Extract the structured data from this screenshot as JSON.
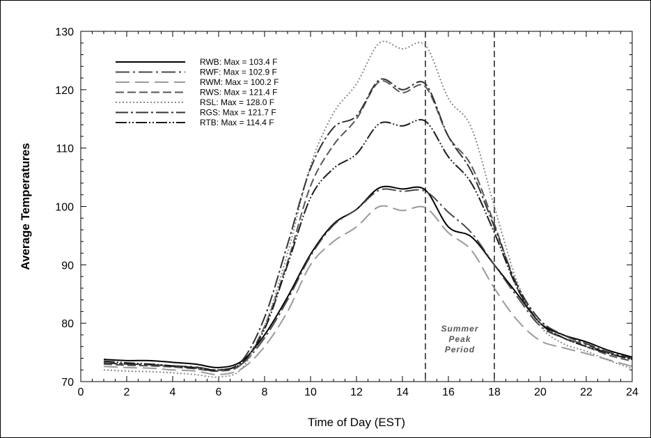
{
  "chart_data": {
    "type": "line",
    "title": "",
    "xlabel": "Time of Day (EST)",
    "ylabel": "Average Temperatures",
    "xlim": [
      0,
      24
    ],
    "ylim": [
      70,
      130
    ],
    "xticks": [
      0,
      2,
      4,
      6,
      8,
      10,
      12,
      14,
      16,
      18,
      20,
      22,
      24
    ],
    "yticks": [
      70,
      80,
      90,
      100,
      110,
      120,
      130
    ],
    "grid": false,
    "legend_position": "top-left",
    "annotation": {
      "lines": [
        "Summer",
        "Peak",
        "Period"
      ],
      "x_start": 15,
      "x_end": 18
    },
    "series": [
      {
        "name": "RWB: Max = 103.4 F",
        "color": "#000000",
        "dash": "",
        "points": [
          [
            1,
            73.8
          ],
          [
            2,
            73.6
          ],
          [
            3,
            73.6
          ],
          [
            4,
            73.3
          ],
          [
            5,
            73.0
          ],
          [
            6,
            72.4
          ],
          [
            7,
            73.5
          ],
          [
            8,
            78.0
          ],
          [
            9,
            84.5
          ],
          [
            10,
            91.8
          ],
          [
            11,
            97.0
          ],
          [
            12,
            99.5
          ],
          [
            13,
            103.2
          ],
          [
            14,
            103.0
          ],
          [
            15,
            102.8
          ],
          [
            16,
            96.5
          ],
          [
            17,
            94.8
          ],
          [
            18,
            90.0
          ],
          [
            19,
            85.0
          ],
          [
            20,
            80.0
          ],
          [
            21,
            78.0
          ],
          [
            22,
            76.8
          ],
          [
            23,
            75.3
          ],
          [
            24,
            74.2
          ]
        ]
      },
      {
        "name": "RWF: Max = 102.9 F",
        "color": "#444444",
        "dash": "20,5,3,5",
        "points": [
          [
            1,
            73.2
          ],
          [
            2,
            73.0
          ],
          [
            3,
            72.9
          ],
          [
            4,
            72.7
          ],
          [
            5,
            72.5
          ],
          [
            6,
            72.0
          ],
          [
            7,
            73.0
          ],
          [
            8,
            77.5
          ],
          [
            9,
            84.0
          ],
          [
            10,
            91.5
          ],
          [
            11,
            96.8
          ],
          [
            12,
            99.5
          ],
          [
            13,
            102.8
          ],
          [
            14,
            102.6
          ],
          [
            15,
            102.6
          ],
          [
            16,
            99.0
          ],
          [
            17,
            95.5
          ],
          [
            18,
            90.0
          ],
          [
            19,
            84.5
          ],
          [
            20,
            79.5
          ],
          [
            21,
            77.5
          ],
          [
            22,
            76.3
          ],
          [
            23,
            74.8
          ],
          [
            24,
            73.8
          ]
        ]
      },
      {
        "name": "RWM: Max = 100.2 F",
        "color": "#999999",
        "dash": "20,8",
        "points": [
          [
            1,
            72.6
          ],
          [
            2,
            72.4
          ],
          [
            3,
            72.3
          ],
          [
            4,
            72.0
          ],
          [
            5,
            71.8
          ],
          [
            6,
            71.2
          ],
          [
            7,
            72.2
          ],
          [
            8,
            76.0
          ],
          [
            9,
            82.0
          ],
          [
            10,
            90.0
          ],
          [
            11,
            94.0
          ],
          [
            12,
            96.5
          ],
          [
            13,
            100.0
          ],
          [
            14,
            99.3
          ],
          [
            15,
            99.8
          ],
          [
            16,
            95.5
          ],
          [
            17,
            92.5
          ],
          [
            18,
            86.0
          ],
          [
            19,
            80.5
          ],
          [
            20,
            77.0
          ],
          [
            21,
            75.8
          ],
          [
            22,
            74.8
          ],
          [
            23,
            73.7
          ],
          [
            24,
            72.6
          ]
        ]
      },
      {
        "name": "RWS: Max = 121.4 F",
        "color": "#555555",
        "dash": "12,5",
        "points": [
          [
            1,
            73.0
          ],
          [
            2,
            72.8
          ],
          [
            3,
            72.7
          ],
          [
            4,
            72.5
          ],
          [
            5,
            72.2
          ],
          [
            6,
            71.8
          ],
          [
            7,
            73.0
          ],
          [
            8,
            79.5
          ],
          [
            9,
            90.5
          ],
          [
            10,
            103.5
          ],
          [
            11,
            110.5
          ],
          [
            12,
            115.0
          ],
          [
            13,
            121.4
          ],
          [
            14,
            119.5
          ],
          [
            15,
            120.5
          ],
          [
            16,
            112.0
          ],
          [
            17,
            107.0
          ],
          [
            18,
            97.0
          ],
          [
            19,
            86.0
          ],
          [
            20,
            80.0
          ],
          [
            21,
            77.5
          ],
          [
            22,
            76.0
          ],
          [
            23,
            74.5
          ],
          [
            24,
            73.5
          ]
        ]
      },
      {
        "name": "RSL: Max = 128.0 F",
        "color": "#888888",
        "dash": "2,3",
        "points": [
          [
            1,
            72.0
          ],
          [
            2,
            71.8
          ],
          [
            3,
            71.7
          ],
          [
            4,
            71.5
          ],
          [
            5,
            71.2
          ],
          [
            6,
            70.8
          ],
          [
            7,
            72.2
          ],
          [
            8,
            79.5
          ],
          [
            9,
            92.0
          ],
          [
            10,
            107.0
          ],
          [
            11,
            116.0
          ],
          [
            12,
            121.0
          ],
          [
            13,
            128.0
          ],
          [
            14,
            127.0
          ],
          [
            15,
            127.6
          ],
          [
            16,
            118.5
          ],
          [
            17,
            113.5
          ],
          [
            18,
            100.0
          ],
          [
            19,
            87.0
          ],
          [
            20,
            79.5
          ],
          [
            21,
            76.5
          ],
          [
            22,
            75.2
          ],
          [
            23,
            73.6
          ],
          [
            24,
            72.2
          ]
        ]
      },
      {
        "name": "RGS: Max = 121.7 F",
        "color": "#333333",
        "dash": "18,4,3,4",
        "points": [
          [
            1,
            73.2
          ],
          [
            2,
            73.0
          ],
          [
            3,
            72.9
          ],
          [
            4,
            72.6
          ],
          [
            5,
            72.3
          ],
          [
            6,
            71.9
          ],
          [
            7,
            73.5
          ],
          [
            8,
            81.0
          ],
          [
            9,
            93.5
          ],
          [
            10,
            106.5
          ],
          [
            11,
            113.5
          ],
          [
            12,
            115.5
          ],
          [
            13,
            121.7
          ],
          [
            14,
            120.0
          ],
          [
            15,
            121.0
          ],
          [
            16,
            112.0
          ],
          [
            17,
            106.0
          ],
          [
            18,
            96.5
          ],
          [
            19,
            86.5
          ],
          [
            20,
            80.5
          ],
          [
            21,
            78.0
          ],
          [
            22,
            76.5
          ],
          [
            23,
            75.0
          ],
          [
            24,
            74.0
          ]
        ]
      },
      {
        "name": "RTB: Max = 114.4 F",
        "color": "#1a1a1a",
        "dash": "16,3,2,3,2,3",
        "points": [
          [
            1,
            73.5
          ],
          [
            2,
            73.2
          ],
          [
            3,
            73.0
          ],
          [
            4,
            72.7
          ],
          [
            5,
            72.4
          ],
          [
            6,
            72.0
          ],
          [
            7,
            73.2
          ],
          [
            8,
            79.0
          ],
          [
            9,
            90.0
          ],
          [
            10,
            101.5
          ],
          [
            11,
            106.5
          ],
          [
            12,
            109.0
          ],
          [
            13,
            114.2
          ],
          [
            14,
            113.8
          ],
          [
            15,
            114.6
          ],
          [
            16,
            108.5
          ],
          [
            17,
            104.0
          ],
          [
            18,
            95.5
          ],
          [
            19,
            86.0
          ],
          [
            20,
            80.0
          ],
          [
            21,
            77.5
          ],
          [
            22,
            76.0
          ],
          [
            23,
            74.8
          ],
          [
            24,
            73.8
          ]
        ]
      }
    ]
  }
}
